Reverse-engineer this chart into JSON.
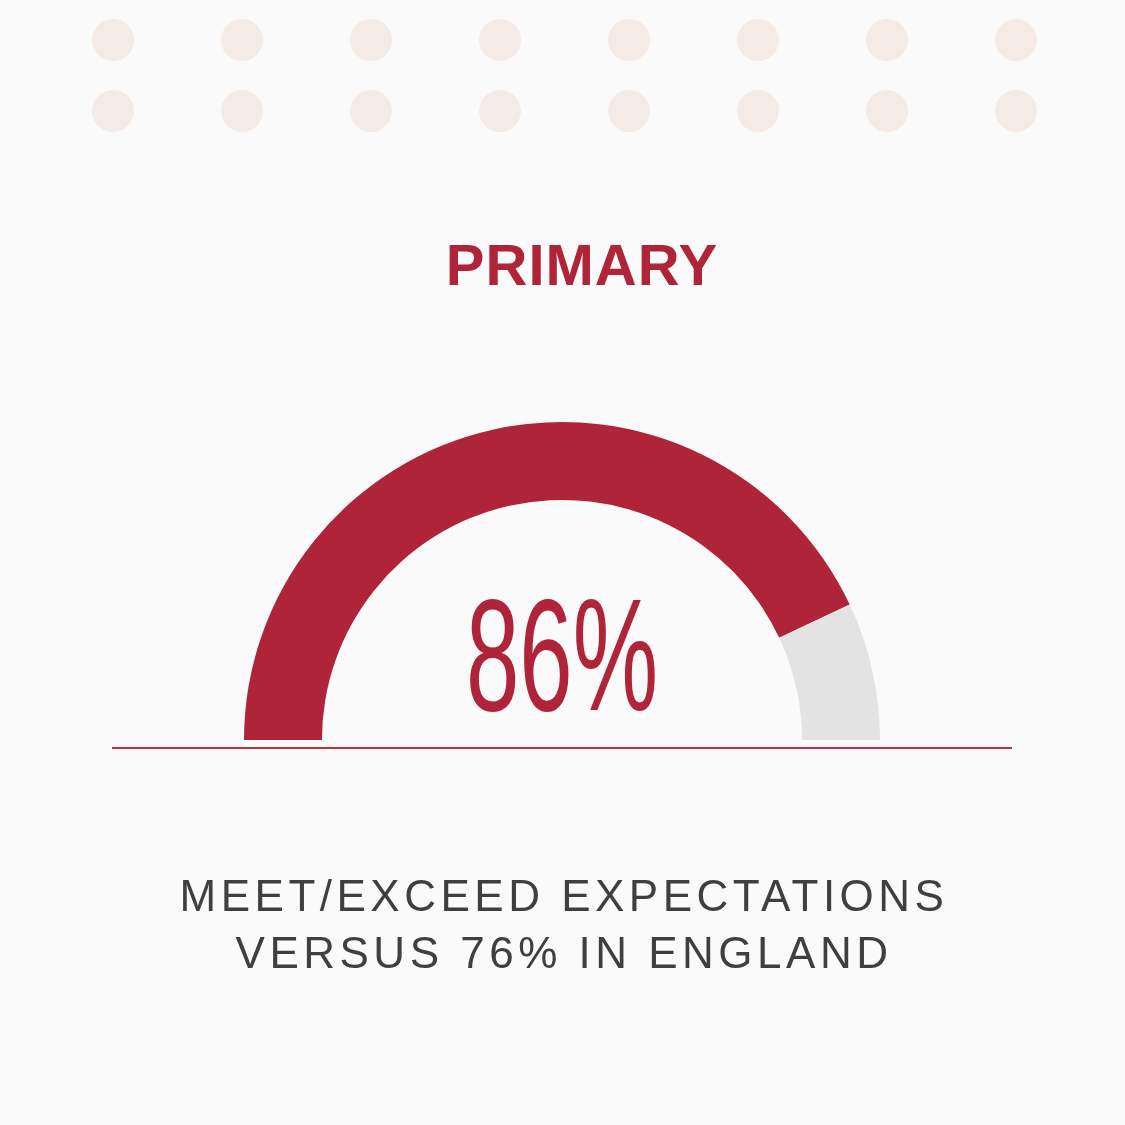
{
  "chart_data": {
    "type": "donut",
    "title": "PRIMARY",
    "categories": [
      null,
      null
    ],
    "values": [
      86,
      14
    ],
    "colors": [
      "#b0243a",
      "#e3e3e3"
    ],
    "value_labels": [
      "86%",
      null
    ],
    "annotations": [
      "MEET/EXCEED EXPECTATIONS VERSUS 76% IN ENGLAND"
    ]
  }
}
